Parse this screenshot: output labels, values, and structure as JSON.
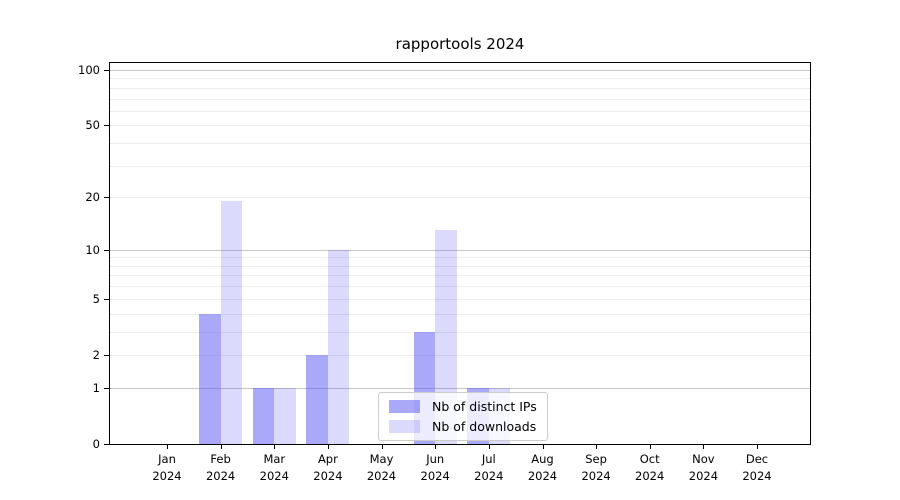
{
  "chart_data": {
    "type": "bar",
    "title": "rapportools 2024",
    "categories": [
      "Jan",
      "Feb",
      "Mar",
      "Apr",
      "May",
      "Jun",
      "Jul",
      "Aug",
      "Sep",
      "Oct",
      "Nov",
      "Dec"
    ],
    "x_year": "2024",
    "series": [
      {
        "name": "Nb of distinct IPs",
        "color": "rgba(85,82,242,0.5)",
        "color_hex_on_white": "#abaaf9",
        "values": [
          0,
          4,
          1,
          2,
          0,
          3,
          1,
          0,
          0,
          0,
          0,
          0
        ]
      },
      {
        "name": "Nb of downloads",
        "color": "rgba(85,82,242,0.21)",
        "color_hex_on_white": "#dcdbfa",
        "values": [
          0,
          19,
          1,
          10,
          0,
          13,
          1,
          0,
          0,
          0,
          0,
          0
        ]
      }
    ],
    "xlabel": "",
    "ylabel": "",
    "y_ticks": [
      0,
      1,
      2,
      5,
      10,
      20,
      50,
      100
    ],
    "y_scale": "log10(1+y)",
    "ylim": [
      0,
      109
    ],
    "grid": {
      "on": true,
      "minor_values": [
        2,
        3,
        4,
        5,
        6,
        7,
        8,
        9,
        20,
        30,
        40,
        50,
        60,
        70,
        80,
        90
      ],
      "major_values": [
        1,
        10,
        100
      ],
      "minor_color": "#ececec",
      "major_color": "#c6c6c6"
    },
    "legend": {
      "position": "lower-center"
    }
  }
}
